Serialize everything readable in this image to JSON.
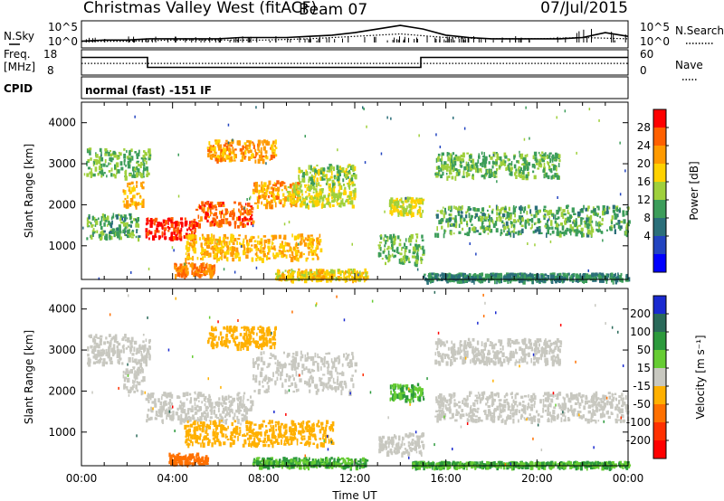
{
  "header": {
    "title": "Christmas Valley West (fitACF)",
    "beam": "Beam 07",
    "date": "07/Jul/2015"
  },
  "colors": {
    "background": "#ffffff",
    "axis": "#000000",
    "scatter_grey": "#c8c8c0"
  },
  "chart_data": [
    {
      "id": "nsky_nsearch",
      "type": "line",
      "left_label": "N.Sky",
      "right_label": "N.Search",
      "yticks_left": [
        "10^5",
        "10^0"
      ],
      "yticks_right": [
        "10^5",
        "10^0"
      ],
      "xlim": [
        0,
        24
      ],
      "series": [
        {
          "name": "N.Sky",
          "style": "solid",
          "x": [
            0,
            1,
            2,
            3,
            4,
            5,
            6,
            7,
            8,
            9,
            10,
            11,
            12,
            13,
            14,
            15,
            16,
            17,
            18,
            19,
            20,
            21,
            22,
            23,
            24
          ],
          "y": [
            0.2,
            0.25,
            0.25,
            0.3,
            0.3,
            0.3,
            0.3,
            0.35,
            0.35,
            0.35,
            0.4,
            0.45,
            0.55,
            0.7,
            0.85,
            0.7,
            0.45,
            0.35,
            0.3,
            0.3,
            0.3,
            0.3,
            0.35,
            0.55,
            0.4
          ]
        },
        {
          "name": "N.Search",
          "style": "dotted",
          "x": [
            0,
            2,
            4,
            6,
            8,
            10,
            12,
            14,
            16,
            18,
            20,
            22,
            24
          ],
          "y": [
            0.2,
            0.2,
            0.25,
            0.25,
            0.25,
            0.3,
            0.4,
            0.5,
            0.35,
            0.3,
            0.3,
            0.35,
            0.3
          ]
        }
      ]
    },
    {
      "id": "freq_nave",
      "type": "line",
      "left_label_line1": "Freq.",
      "left_label_line2": "[MHz]",
      "right_label": "Nave",
      "yticks_left": [
        "18",
        "8"
      ],
      "yticks_right": [
        "60",
        "0"
      ],
      "xlim": [
        0,
        24
      ],
      "series": [
        {
          "name": "Freq.",
          "style": "solid",
          "x": [
            0,
            2.9,
            2.9,
            14.9,
            14.9,
            24
          ],
          "y": [
            15.5,
            15.5,
            10.5,
            10.5,
            15.5,
            15.5
          ]
        },
        {
          "name": "Nave",
          "style": "dotted",
          "x": [
            0,
            24
          ],
          "y": [
            27,
            27
          ]
        }
      ]
    },
    {
      "id": "cpid",
      "type": "table",
      "label": "CPID",
      "text": "normal (fast) -151 IF"
    },
    {
      "id": "power",
      "type": "scatter",
      "ylabel": "Slant Range [km]",
      "xlim": [
        0,
        24
      ],
      "ylim": [
        180,
        4500
      ],
      "yticks": [
        1000,
        2000,
        3000,
        4000
      ],
      "colorbar": {
        "label": "Power [dB]",
        "ticks": [
          "28",
          "24",
          "20",
          "16",
          "12",
          "8",
          "4"
        ],
        "colors": [
          "#ff0000",
          "#ff6000",
          "#ff9a00",
          "#ffd200",
          "#9fd03c",
          "#3c9d5a",
          "#2b6f7a",
          "#2244c0",
          "#0000ff"
        ]
      },
      "regions": [
        {
          "x0": 0.2,
          "x1": 3.0,
          "y0": 2700,
          "y1": 3400,
          "value": 10
        },
        {
          "x0": 1.8,
          "x1": 2.7,
          "y0": 2000,
          "y1": 2600,
          "value": 18
        },
        {
          "x0": 0.2,
          "x1": 2.5,
          "y0": 1200,
          "y1": 1800,
          "value": 9
        },
        {
          "x0": 2.8,
          "x1": 5.0,
          "y0": 1200,
          "y1": 1700,
          "value": 27
        },
        {
          "x0": 5.0,
          "x1": 7.5,
          "y0": 1500,
          "y1": 2100,
          "value": 24
        },
        {
          "x0": 7.5,
          "x1": 9.5,
          "y0": 2000,
          "y1": 2600,
          "value": 20
        },
        {
          "x0": 9.5,
          "x1": 12.0,
          "y0": 2500,
          "y1": 3000,
          "value": 12
        },
        {
          "x0": 5.5,
          "x1": 8.5,
          "y0": 3100,
          "y1": 3600,
          "value": 20
        },
        {
          "x0": 4.5,
          "x1": 10.5,
          "y0": 700,
          "y1": 1300,
          "value": 18
        },
        {
          "x0": 4.0,
          "x1": 5.8,
          "y0": 300,
          "y1": 600,
          "value": 22
        },
        {
          "x0": 8.5,
          "x1": 12.5,
          "y0": 200,
          "y1": 450,
          "value": 16
        },
        {
          "x0": 9.0,
          "x1": 12.0,
          "y0": 2000,
          "y1": 2500,
          "value": 14
        },
        {
          "x0": 13.5,
          "x1": 15.0,
          "y0": 1800,
          "y1": 2200,
          "value": 14
        },
        {
          "x0": 13.0,
          "x1": 15.0,
          "y0": 600,
          "y1": 1300,
          "value": 10
        },
        {
          "x0": 15.5,
          "x1": 21.0,
          "y0": 2700,
          "y1": 3300,
          "value": 10
        },
        {
          "x0": 15.5,
          "x1": 24.0,
          "y0": 1300,
          "y1": 2000,
          "value": 9
        },
        {
          "x0": 15.0,
          "x1": 24.0,
          "y0": 180,
          "y1": 350,
          "value": 6
        }
      ]
    },
    {
      "id": "velocity",
      "type": "scatter",
      "ylabel": "Slant Range [km]",
      "xlabel": "Time UT",
      "xlim": [
        0,
        24
      ],
      "ylim": [
        180,
        4500
      ],
      "yticks": [
        1000,
        2000,
        3000,
        4000
      ],
      "xticks": [
        "00:00",
        "04:00",
        "08:00",
        "12:00",
        "16:00",
        "20:00",
        "00:00"
      ],
      "colorbar": {
        "label": "Velocity [m s⁻¹]",
        "ticks": [
          "200",
          "100",
          "50",
          "15",
          "-15",
          "-50",
          "-100",
          "-200"
        ],
        "colors": [
          "#1a2ad0",
          "#2a6a5a",
          "#2c9a3c",
          "#66cc33",
          "#c8c8c0",
          "#ffb000",
          "#ff7000",
          "#ff3000",
          "#ff0000"
        ]
      },
      "regions": [
        {
          "x0": 0.2,
          "x1": 3.0,
          "y0": 2700,
          "y1": 3400,
          "value": 0
        },
        {
          "x0": 1.8,
          "x1": 2.7,
          "y0": 2000,
          "y1": 2600,
          "value": 0
        },
        {
          "x0": 2.8,
          "x1": 7.5,
          "y0": 1300,
          "y1": 2000,
          "value": 0
        },
        {
          "x0": 7.5,
          "x1": 12.0,
          "y0": 2000,
          "y1": 3000,
          "value": 0
        },
        {
          "x0": 5.5,
          "x1": 8.5,
          "y0": 3100,
          "y1": 3600,
          "value": -40
        },
        {
          "x0": 4.5,
          "x1": 11.0,
          "y0": 700,
          "y1": 1300,
          "value": -45
        },
        {
          "x0": 3.8,
          "x1": 5.5,
          "y0": 250,
          "y1": 500,
          "value": -90
        },
        {
          "x0": 7.5,
          "x1": 12.5,
          "y0": 180,
          "y1": 400,
          "value": 30
        },
        {
          "x0": 13.5,
          "x1": 15.0,
          "y0": 1800,
          "y1": 2200,
          "value": 30
        },
        {
          "x0": 13.0,
          "x1": 15.0,
          "y0": 500,
          "y1": 1000,
          "value": 0
        },
        {
          "x0": 15.5,
          "x1": 21.0,
          "y0": 2700,
          "y1": 3300,
          "value": 0
        },
        {
          "x0": 15.5,
          "x1": 24.0,
          "y0": 1300,
          "y1": 2000,
          "value": 0
        },
        {
          "x0": 14.5,
          "x1": 24.0,
          "y0": 180,
          "y1": 300,
          "value": 30
        }
      ]
    }
  ]
}
